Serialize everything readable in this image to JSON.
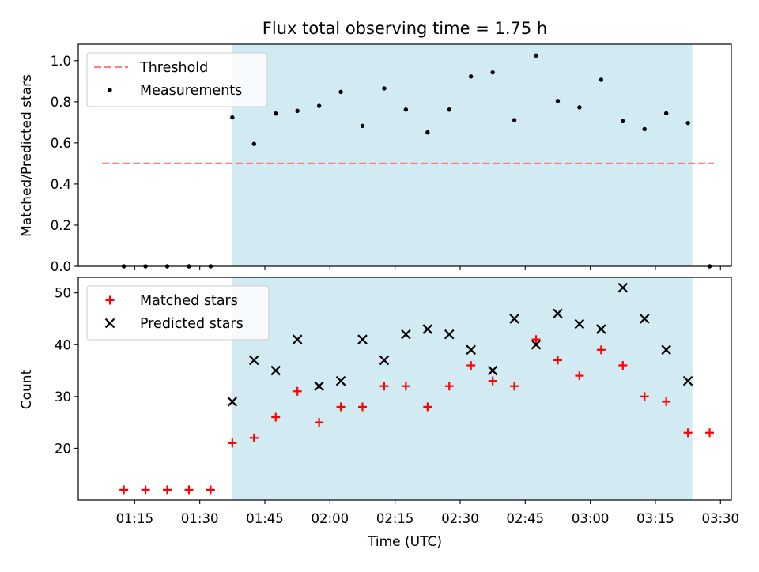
{
  "chart_data": {
    "title": "Flux total observing time = 1.75 h",
    "xlabel": "Time (UTC)",
    "x_ticks": [
      "01:15",
      "01:30",
      "01:45",
      "02:00",
      "02:15",
      "02:30",
      "02:45",
      "03:00",
      "03:15",
      "03:30"
    ],
    "x_tick_minutes": [
      75,
      90,
      105,
      120,
      135,
      150,
      165,
      180,
      195,
      210
    ],
    "x_range_minutes": [
      62,
      212.5
    ],
    "shaded_interval_minutes": [
      97.5,
      203.5
    ],
    "colors": {
      "shade": "#add8e6",
      "threshold": "#ff7f7f",
      "matched": "#ff0000",
      "predicted": "#000000",
      "measurement": "#000000"
    },
    "panels": [
      {
        "type": "scatter",
        "ylabel": "Matched/Predicted stars",
        "ylim": [
          0,
          1.08
        ],
        "y_ticks": [
          0.0,
          0.2,
          0.4,
          0.6,
          0.8,
          1.0
        ],
        "y_tick_labels": [
          "0.0",
          "0.2",
          "0.4",
          "0.6",
          "0.8",
          "1.0"
        ],
        "legend_location": "top-left",
        "threshold": {
          "name": "Threshold",
          "value": 0.5,
          "x_from": 67.5,
          "x_to": 208.5
        },
        "series": [
          {
            "name": "Measurements",
            "marker": "dot",
            "x": [
              72.5,
              77.5,
              82.5,
              87.5,
              92.5,
              97.5,
              102.5,
              107.5,
              112.5,
              117.5,
              122.5,
              127.5,
              132.5,
              137.5,
              142.5,
              147.5,
              152.5,
              157.5,
              162.5,
              167.5,
              172.5,
              177.5,
              182.5,
              187.5,
              192.5,
              197.5,
              202.5,
              207.5
            ],
            "y": [
              0,
              0,
              0,
              0,
              0,
              0.724,
              0.595,
              0.743,
              0.756,
              0.78,
              0.848,
              0.683,
              0.865,
              0.762,
              0.651,
              0.762,
              0.923,
              0.943,
              0.711,
              1.025,
              0.804,
              0.773,
              0.907,
              0.706,
              0.667,
              0.744,
              0.697,
              0
            ]
          }
        ]
      },
      {
        "type": "scatter",
        "ylabel": "Count",
        "ylim": [
          10,
          53
        ],
        "y_ticks": [
          20,
          30,
          40,
          50
        ],
        "y_tick_labels": [
          "20",
          "30",
          "40",
          "50"
        ],
        "legend_location": "top-left",
        "series": [
          {
            "name": "Matched stars",
            "marker": "plus",
            "x": [
              72.5,
              77.5,
              82.5,
              87.5,
              92.5,
              97.5,
              102.5,
              107.5,
              112.5,
              117.5,
              122.5,
              127.5,
              132.5,
              137.5,
              142.5,
              147.5,
              152.5,
              157.5,
              162.5,
              167.5,
              172.5,
              177.5,
              182.5,
              187.5,
              192.5,
              197.5,
              202.5,
              207.5
            ],
            "y": [
              12,
              12,
              12,
              12,
              12,
              21,
              22,
              26,
              31,
              25,
              28,
              28,
              32,
              32,
              28,
              32,
              36,
              33,
              32,
              41,
              37,
              34,
              39,
              36,
              30,
              29,
              23,
              23
            ]
          },
          {
            "name": "Predicted stars",
            "marker": "x",
            "x": [
              97.5,
              102.5,
              107.5,
              112.5,
              117.5,
              122.5,
              127.5,
              132.5,
              137.5,
              142.5,
              147.5,
              152.5,
              157.5,
              162.5,
              167.5,
              172.5,
              177.5,
              182.5,
              187.5,
              192.5,
              197.5,
              202.5
            ],
            "y": [
              29,
              37,
              35,
              41,
              32,
              33,
              41,
              37,
              42,
              43,
              42,
              39,
              35,
              45,
              40,
              46,
              44,
              43,
              51,
              45,
              39,
              33
            ]
          }
        ]
      }
    ]
  }
}
